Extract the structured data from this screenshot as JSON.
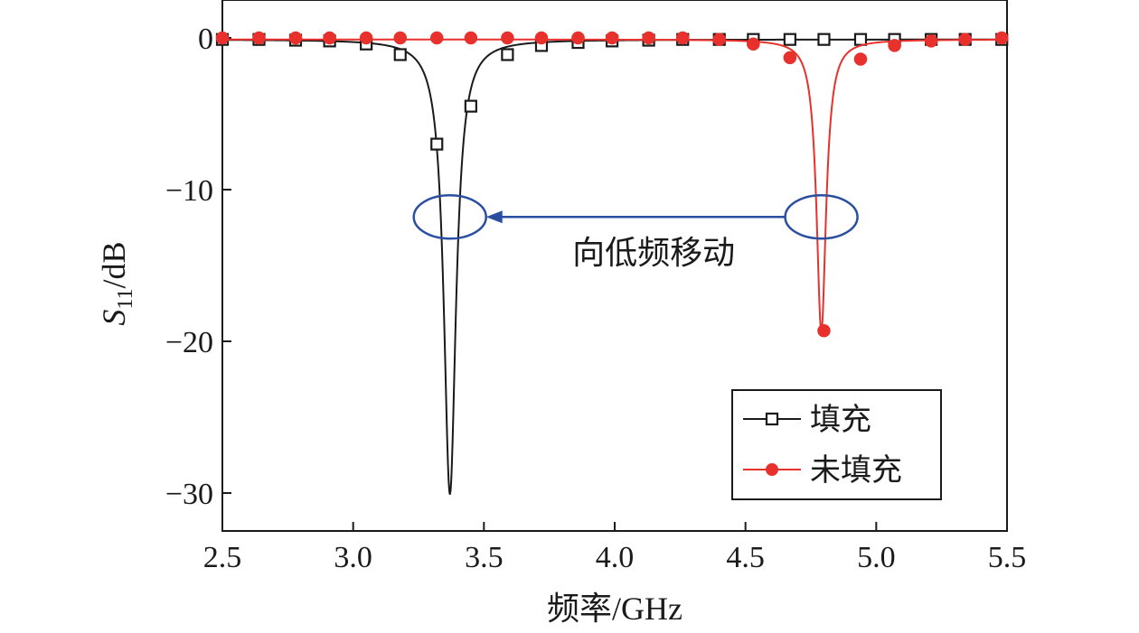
{
  "chart_data": {
    "type": "line",
    "xlabel": "频率/GHz",
    "ylabel_main": "S",
    "ylabel_sub": "11",
    "ylabel_rest": "/dB",
    "xlim": [
      2.5,
      5.5
    ],
    "ylim": [
      -32.5,
      2.5
    ],
    "x_ticks": [
      2.5,
      3.0,
      3.5,
      4.0,
      4.5,
      5.0,
      5.5
    ],
    "x_tick_labels": [
      "2.5",
      "3.0",
      "3.5",
      "4.0",
      "4.5",
      "5.0",
      "5.5"
    ],
    "y_ticks": [
      0,
      -10,
      -20,
      -30
    ],
    "y_tick_labels": [
      "0",
      "−10",
      "−20",
      "−30"
    ],
    "grid": false,
    "legend_position": "bottom-right",
    "series": [
      {
        "name": "填充",
        "color": "#1a1a1a",
        "marker": "square",
        "resonance": {
          "f0": 3.37,
          "min": -30,
          "width": 0.028
        },
        "markers_x": [
          2.5,
          2.64,
          2.78,
          2.91,
          3.05,
          3.18,
          3.32,
          3.45,
          3.59,
          3.72,
          3.86,
          3.99,
          4.13,
          4.26,
          4.4,
          4.53,
          4.67,
          4.8,
          4.94,
          5.07,
          5.21,
          5.34,
          5.48
        ],
        "markers_y": [
          -0.1,
          -0.1,
          -0.15,
          -0.2,
          -0.4,
          -1.1,
          -7.0,
          -4.5,
          -1.1,
          -0.5,
          -0.3,
          -0.2,
          -0.15,
          -0.1,
          -0.1,
          -0.1,
          -0.1,
          -0.1,
          -0.1,
          -0.1,
          -0.1,
          -0.1,
          -0.1
        ]
      },
      {
        "name": "未填充",
        "color": "#e8312c",
        "marker": "circle",
        "resonance": {
          "f0": 4.79,
          "min": -19.3,
          "width": 0.022
        },
        "markers_x": [
          2.5,
          2.64,
          2.78,
          2.91,
          3.05,
          3.18,
          3.32,
          3.45,
          3.59,
          3.72,
          3.86,
          3.99,
          4.13,
          4.26,
          4.4,
          4.53,
          4.67,
          4.8,
          4.94,
          5.07,
          5.21,
          5.34,
          5.48
        ],
        "markers_y": [
          0,
          0,
          0,
          0,
          0,
          0,
          0,
          0,
          0,
          0,
          0,
          0,
          0,
          0,
          -0.1,
          -0.4,
          -1.3,
          -19.3,
          -1.4,
          -0.5,
          -0.2,
          -0.1,
          0
        ]
      }
    ],
    "annotation": {
      "text": "向低频移动",
      "arrow_from": [
        4.79,
        -11.8
      ],
      "arrow_to": [
        3.37,
        -11.8
      ],
      "color": "#2b4fa0"
    }
  }
}
